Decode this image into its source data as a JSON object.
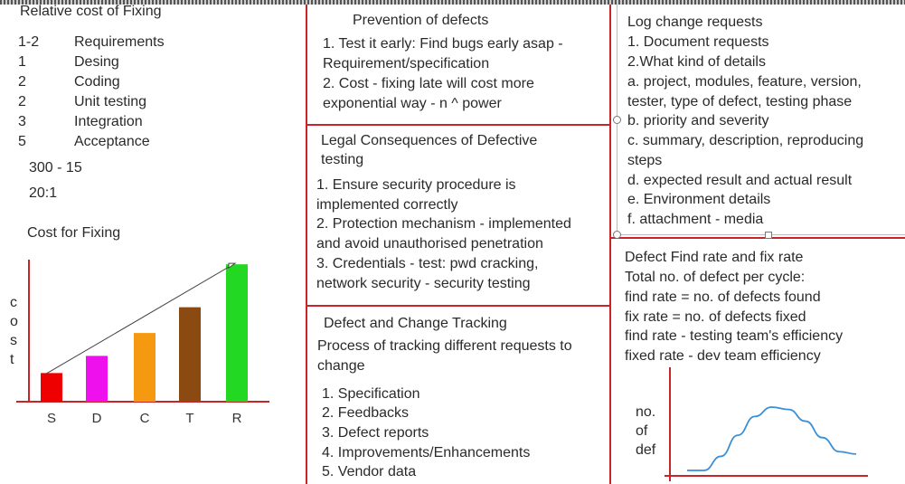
{
  "col1": {
    "title": "Relative cost of Fixing",
    "rows": [
      {
        "n": "1-2",
        "phase": "Requirements"
      },
      {
        "n": "1",
        "phase": "Desing"
      },
      {
        "n": "2",
        "phase": "Coding"
      },
      {
        "n": "2",
        "phase": "Unit testing"
      },
      {
        "n": "3",
        "phase": "Integration"
      },
      {
        "n": "5",
        "phase": "Acceptance"
      }
    ],
    "note1": "300 - 15",
    "note2": "20:1",
    "chart_title": "Cost for Fixing",
    "ylabel_letters": [
      "c",
      "o",
      "s",
      "t"
    ]
  },
  "chart_data": [
    {
      "type": "bar",
      "title": "Cost for Fixing",
      "ylabel": "cost",
      "categories": [
        "S",
        "D",
        "C",
        "T",
        "R"
      ],
      "values": [
        1,
        1.6,
        2.4,
        3.3,
        4.8
      ],
      "colors": [
        "#ee0000",
        "#ee11ee",
        "#f59a10",
        "#8b4a12",
        "#22d822"
      ],
      "ylim": [
        0,
        5.5
      ],
      "trend_line": true
    },
    {
      "type": "line",
      "ylabel": "no. of def",
      "x": [
        0,
        1,
        2,
        3,
        4,
        5,
        6,
        7,
        8,
        9,
        10
      ],
      "y": [
        0,
        0,
        0.6,
        1.5,
        2.3,
        2.7,
        2.6,
        2.1,
        1.4,
        0.8,
        0.7
      ]
    }
  ],
  "col2": {
    "box1": {
      "title": "Prevention of defects",
      "lines": [
        "1. Test it early: Find bugs early asap -",
        "Requirement/specification",
        "2. Cost - fixing late will cost more",
        "exponential way - n ^ power"
      ]
    },
    "box2": {
      "title": "Legal Consequences of Defective",
      "title2": "testing",
      "lines": [
        "1. Ensure security procedure is",
        "implemented correctly",
        "2. Protection mechanism - implemented",
        "and avoid unauthorised penetration",
        "3. Credentials - test: pwd cracking,",
        "network security - security testing"
      ]
    },
    "box3": {
      "title": "Defect and Change Tracking",
      "lines": [
        "Process of tracking different requests to",
        "change"
      ],
      "list": [
        "1. Specification",
        "2. Feedbacks",
        "3. Defect reports",
        "4. Improvements/Enhancements",
        "5. Vendor data"
      ]
    }
  },
  "col3": {
    "box1": {
      "title": "Log change requests",
      "lines": [
        "1. Document requests",
        "2.What kind of details",
        "a. project, modules, feature, version,",
        "tester, type of defect, testing phase",
        "b. priority and severity",
        "c. summary, description, reproducing",
        "steps",
        "d. expected result and actual result",
        "e. Environment details",
        "f. attachment - media"
      ]
    },
    "box2": {
      "title": "Defect Find rate and fix rate",
      "lines": [
        "Total no. of defect per cycle:",
        "find rate = no. of defects found",
        "fix rate = no. of defects fixed",
        "find rate - testing team's efficiency",
        "fixed rate - dev team efficiency"
      ],
      "graph_labels": [
        "no.",
        "of",
        "def"
      ]
    }
  }
}
